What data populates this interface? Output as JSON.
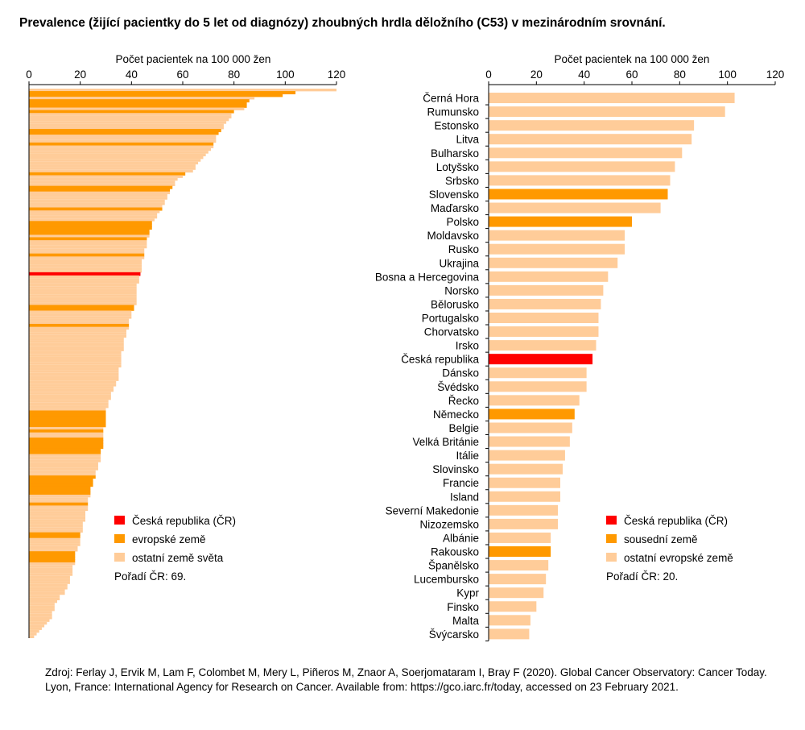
{
  "title": "Prevalence (žijící pacientky do 5 let od diagnózy) zhoubných hrdla děložního (C53) v mezinárodním srovnání.",
  "source": "Zdroj: Ferlay J, Ervik M, Lam F, Colombet M, Mery L, Piñeros M, Znaor A, Soerjomataram I, Bray F (2020). Global Cancer Observatory: Cancer Today. Lyon, France: International Agency for Research on Cancer. Available from: https://gco.iarc.fr/today, accessed on 23 February 2021.",
  "colors": {
    "cr": "#ff0000",
    "highlight": "#ff9900",
    "other": "#ffcc99"
  },
  "chart_data": [
    {
      "type": "bar",
      "orientation": "horizontal",
      "xlabel": "Počet pacientek na 100 000 žen",
      "xlim": [
        0,
        120
      ],
      "ticks": [
        0,
        20,
        40,
        60,
        80,
        100,
        120
      ],
      "legend": [
        {
          "label": "Česká republika (ČR)",
          "color": "#ff0000"
        },
        {
          "label": "evropské země",
          "color": "#ff9900"
        },
        {
          "label": "ostatní země světa",
          "color": "#ffcc99"
        }
      ],
      "rank_text": "Pořadí ČR: 69.",
      "values": [
        120,
        104,
        99,
        88,
        86,
        85,
        85,
        84,
        80,
        79,
        79,
        78,
        77,
        76,
        76,
        75,
        74,
        73,
        73,
        73,
        72,
        72,
        71,
        70,
        69,
        68,
        67,
        66,
        65,
        65,
        64,
        61,
        60,
        58,
        57,
        57,
        56,
        55,
        55,
        54,
        54,
        53,
        53,
        52,
        52,
        51,
        50,
        50,
        49,
        48,
        48,
        48,
        47,
        47,
        47,
        46,
        46,
        46,
        46,
        45,
        45,
        45,
        45,
        44,
        44,
        44,
        44,
        44,
        43.5,
        43,
        43,
        43,
        42,
        42,
        42,
        42,
        42,
        42,
        42,
        42,
        41,
        41,
        40,
        40,
        40,
        39,
        39,
        39,
        39,
        38,
        38,
        38,
        37,
        37,
        37,
        37,
        37,
        36,
        36,
        36,
        36,
        36,
        36,
        35,
        35,
        35,
        35,
        35,
        34,
        34,
        33,
        33,
        32,
        32,
        32,
        31,
        31,
        31,
        30,
        30,
        30,
        30,
        30,
        30,
        30,
        29,
        29,
        29,
        29,
        29,
        29,
        29,
        29,
        28,
        28,
        28,
        28,
        28,
        27,
        27,
        27,
        26,
        26,
        26,
        25,
        25,
        25,
        24,
        24,
        24,
        24,
        23,
        23,
        23,
        23,
        23,
        22,
        22,
        22,
        22,
        21,
        21,
        21,
        21,
        20,
        20,
        20,
        20,
        20,
        19,
        19,
        18,
        18,
        18,
        18,
        18,
        17,
        17,
        17,
        17,
        16,
        16,
        16,
        15,
        15,
        14,
        14,
        12,
        12,
        11,
        10,
        10,
        10,
        9,
        9,
        9,
        8,
        7,
        6,
        5,
        4,
        3,
        2
      ],
      "highlight_ranks": [
        2,
        3,
        5,
        6,
        7,
        9,
        16,
        17,
        21,
        32,
        37,
        38,
        45,
        50,
        51,
        52,
        53,
        54,
        56,
        62,
        81,
        82,
        88,
        120,
        121,
        122,
        123,
        124,
        125,
        127,
        130,
        131,
        132,
        133,
        134,
        135,
        144,
        145,
        146,
        147,
        148,
        149,
        150,
        154,
        165,
        166,
        172,
        173,
        174,
        175
      ],
      "cr_rank": 69
    },
    {
      "type": "bar",
      "orientation": "horizontal",
      "xlabel": "Počet pacientek na 100 000 žen",
      "xlim": [
        0,
        120
      ],
      "ticks": [
        0,
        20,
        40,
        60,
        80,
        100,
        120
      ],
      "legend": [
        {
          "label": "Česká republika (ČR)",
          "color": "#ff0000"
        },
        {
          "label": "sousední země",
          "color": "#ff9900"
        },
        {
          "label": "ostatní evropské země",
          "color": "#ffcc99"
        }
      ],
      "rank_text": "Pořadí ČR: 20.",
      "categories": [
        "Černá Hora",
        "Rumunsko",
        "Estonsko",
        "Litva",
        "Bulharsko",
        "Lotyšsko",
        "Srbsko",
        "Slovensko",
        "Maďarsko",
        "Polsko",
        "Moldavsko",
        "Rusko",
        "Ukrajina",
        "Bosna a Hercegovina",
        "Norsko",
        "Bělorusko",
        "Portugalsko",
        "Chorvatsko",
        "Irsko",
        "Česká republika",
        "Dánsko",
        "Švédsko",
        "Řecko",
        "Německo",
        "Belgie",
        "Velká Británie",
        "Itálie",
        "Slovinsko",
        "Francie",
        "Island",
        "Severní Makedonie",
        "Nizozemsko",
        "Albánie",
        "Rakousko",
        "Španělsko",
        "Lucembursko",
        "Kypr",
        "Finsko",
        "Malta",
        "Švýcarsko"
      ],
      "values": [
        103,
        99,
        86,
        85,
        81,
        78,
        76,
        75,
        72,
        60,
        57,
        57,
        54,
        50,
        48,
        47,
        46,
        46,
        45,
        43.5,
        41,
        41,
        38,
        36,
        35,
        34,
        32,
        31,
        30,
        30,
        29,
        29,
        26,
        26,
        25,
        24,
        23,
        20,
        17.5,
        17
      ],
      "groups": [
        "other",
        "other",
        "other",
        "other",
        "other",
        "other",
        "other",
        "neighbor",
        "other",
        "neighbor",
        "other",
        "other",
        "other",
        "other",
        "other",
        "other",
        "other",
        "other",
        "other",
        "cr",
        "other",
        "other",
        "other",
        "neighbor",
        "other",
        "other",
        "other",
        "other",
        "other",
        "other",
        "other",
        "other",
        "other",
        "neighbor",
        "other",
        "other",
        "other",
        "other",
        "other",
        "other"
      ]
    }
  ]
}
